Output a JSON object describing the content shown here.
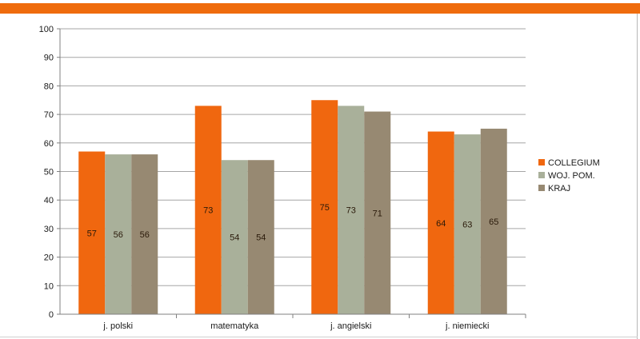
{
  "header": {
    "accent_color": "#ef6c0d"
  },
  "chart_data": {
    "type": "bar",
    "categories": [
      "j. polski",
      "matematyka",
      "j. angielski",
      "j. niemiecki"
    ],
    "series": [
      {
        "name": "COLLEGIUM",
        "values": [
          57,
          73,
          75,
          64
        ],
        "color": "#f0670f"
      },
      {
        "name": "WOJ. POM.",
        "values": [
          56,
          54,
          73,
          63
        ],
        "color": "#a9b09a"
      },
      {
        "name": "KRAJ",
        "values": [
          56,
          54,
          71,
          65
        ],
        "color": "#978972"
      }
    ],
    "ylim": [
      0,
      100
    ],
    "yticks": [
      0,
      10,
      20,
      30,
      40,
      50,
      60,
      70,
      80,
      90,
      100
    ],
    "grid": true,
    "legend": "right",
    "data_labels": true
  }
}
